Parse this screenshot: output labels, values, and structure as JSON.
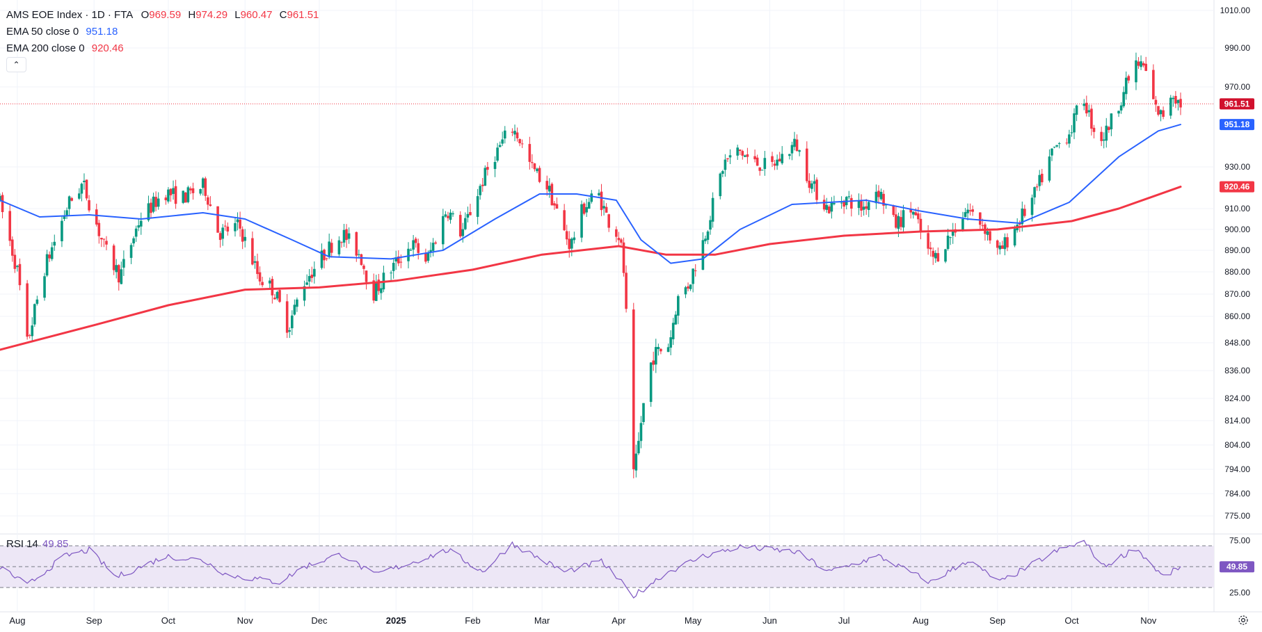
{
  "legend": {
    "title": "AMS EOE Index · 1D · FTA",
    "open_label": "O",
    "open": "969.59",
    "high_label": "H",
    "high": "974.29",
    "low_label": "L",
    "low": "960.47",
    "close_label": "C",
    "close": "961.51",
    "ema50_label": "EMA 50 close 0",
    "ema50_value": "951.18",
    "ema200_label": "EMA 200 close 0",
    "ema200_value": "920.46",
    "collapse_icon": "chevron-up-icon"
  },
  "rsi_legend": {
    "label": "RSI 14",
    "value": "49.85"
  },
  "colors": {
    "up": "#089981",
    "down": "#f23645",
    "ema50": "#2962ff",
    "ema200": "#f23645",
    "rsi": "#7e57c2",
    "rsi_band": "#ede7f6",
    "grid": "#f0f3fa",
    "text": "#131722"
  },
  "chart_data": [
    {
      "type": "candlestick",
      "title": "AMS EOE Index · 1D · FTA",
      "x_ticks": [
        "Aug",
        "Sep",
        "Oct",
        "Nov",
        "Dec",
        "2025",
        "Feb",
        "Mar",
        "Apr",
        "May",
        "Jun",
        "Jul",
        "Aug",
        "Sep",
        "Oct",
        "Nov"
      ],
      "y_ticks": [
        1010,
        990,
        970,
        930,
        910,
        900,
        890,
        880,
        870,
        860,
        848,
        836,
        824,
        814,
        804,
        794,
        784,
        775
      ],
      "ylim": [
        775,
        1010
      ],
      "last_price": 961.51,
      "ema50_last": 951.18,
      "ema200_last": 920.46,
      "price_path": [
        [
          "2024-07-25",
          915
        ],
        [
          "2024-08-02",
          878
        ],
        [
          "2024-08-05",
          845
        ],
        [
          "2024-08-12",
          880
        ],
        [
          "2024-08-22",
          912
        ],
        [
          "2024-08-28",
          922
        ],
        [
          "2024-09-06",
          890
        ],
        [
          "2024-09-12",
          878
        ],
        [
          "2024-09-20",
          905
        ],
        [
          "2024-09-30",
          918
        ],
        [
          "2024-10-07",
          915
        ],
        [
          "2024-10-16",
          921
        ],
        [
          "2024-10-22",
          898
        ],
        [
          "2024-10-30",
          902
        ],
        [
          "2024-11-07",
          878
        ],
        [
          "2024-11-13",
          872
        ],
        [
          "2024-11-19",
          855
        ],
        [
          "2024-11-25",
          875
        ],
        [
          "2024-12-06",
          892
        ],
        [
          "2024-12-11",
          898
        ],
        [
          "2024-12-18",
          888
        ],
        [
          "2024-12-23",
          870
        ],
        [
          "2025-01-02",
          885
        ],
        [
          "2025-01-08",
          893
        ],
        [
          "2025-01-14",
          885
        ],
        [
          "2025-01-22",
          910
        ],
        [
          "2025-01-28",
          898
        ],
        [
          "2025-02-05",
          922
        ],
        [
          "2025-02-10",
          935
        ],
        [
          "2025-02-17",
          950
        ],
        [
          "2025-02-20",
          945
        ],
        [
          "2025-02-25",
          930
        ],
        [
          "2025-03-04",
          920
        ],
        [
          "2025-03-10",
          900
        ],
        [
          "2025-03-13",
          892
        ],
        [
          "2025-03-18",
          910
        ],
        [
          "2025-03-24",
          918
        ],
        [
          "2025-03-28",
          905
        ],
        [
          "2025-04-02",
          896
        ],
        [
          "2025-04-04",
          875
        ],
        [
          "2025-04-07",
          787
        ],
        [
          "2025-04-09",
          800
        ],
        [
          "2025-04-11",
          818
        ],
        [
          "2025-04-15",
          842
        ],
        [
          "2025-04-22",
          848
        ],
        [
          "2025-04-25",
          867
        ],
        [
          "2025-04-30",
          875
        ],
        [
          "2025-05-06",
          896
        ],
        [
          "2025-05-14",
          932
        ],
        [
          "2025-05-20",
          938
        ],
        [
          "2025-05-26",
          932
        ],
        [
          "2025-06-02",
          930
        ],
        [
          "2025-06-09",
          938
        ],
        [
          "2025-06-12",
          942
        ],
        [
          "2025-06-18",
          922
        ],
        [
          "2025-06-25",
          910
        ],
        [
          "2025-07-02",
          915
        ],
        [
          "2025-07-09",
          910
        ],
        [
          "2025-07-15",
          920
        ],
        [
          "2025-07-22",
          902
        ],
        [
          "2025-07-29",
          910
        ],
        [
          "2025-08-04",
          890
        ],
        [
          "2025-08-07",
          886
        ],
        [
          "2025-08-14",
          898
        ],
        [
          "2025-08-20",
          910
        ],
        [
          "2025-08-27",
          902
        ],
        [
          "2025-09-02",
          888
        ],
        [
          "2025-09-08",
          900
        ],
        [
          "2025-09-16",
          915
        ],
        [
          "2025-09-24",
          938
        ],
        [
          "2025-10-01",
          948
        ],
        [
          "2025-10-06",
          966
        ],
        [
          "2025-10-10",
          950
        ],
        [
          "2025-10-14",
          944
        ],
        [
          "2025-10-20",
          960
        ],
        [
          "2025-10-27",
          982
        ],
        [
          "2025-10-31",
          980
        ],
        [
          "2025-11-04",
          960
        ],
        [
          "2025-11-07",
          955
        ],
        [
          "2025-11-11",
          968
        ],
        [
          "2025-11-14",
          961.51
        ]
      ],
      "ema50_path": [
        [
          "2024-07-25",
          914
        ],
        [
          "2024-08-10",
          906
        ],
        [
          "2024-08-30",
          907
        ],
        [
          "2024-09-20",
          905
        ],
        [
          "2024-10-15",
          908
        ],
        [
          "2024-11-01",
          905
        ],
        [
          "2024-11-20",
          895
        ],
        [
          "2024-12-05",
          887
        ],
        [
          "2024-12-30",
          886
        ],
        [
          "2025-01-20",
          890
        ],
        [
          "2025-02-10",
          905
        ],
        [
          "2025-02-28",
          917
        ],
        [
          "2025-03-15",
          917
        ],
        [
          "2025-03-31",
          914
        ],
        [
          "2025-04-10",
          895
        ],
        [
          "2025-04-22",
          884
        ],
        [
          "2025-05-05",
          886
        ],
        [
          "2025-05-20",
          900
        ],
        [
          "2025-06-10",
          912
        ],
        [
          "2025-07-10",
          914
        ],
        [
          "2025-07-31",
          909
        ],
        [
          "2025-08-20",
          905
        ],
        [
          "2025-09-10",
          903
        ],
        [
          "2025-09-30",
          913
        ],
        [
          "2025-10-20",
          935
        ],
        [
          "2025-11-05",
          948
        ],
        [
          "2025-11-14",
          951.18
        ]
      ],
      "ema200_path": [
        [
          "2024-07-25",
          845
        ],
        [
          "2024-09-01",
          856
        ],
        [
          "2024-10-01",
          865
        ],
        [
          "2024-11-01",
          872
        ],
        [
          "2024-12-01",
          873
        ],
        [
          "2025-01-01",
          876
        ],
        [
          "2025-02-01",
          881
        ],
        [
          "2025-03-01",
          888
        ],
        [
          "2025-04-01",
          892
        ],
        [
          "2025-04-20",
          888
        ],
        [
          "2025-05-10",
          888
        ],
        [
          "2025-06-01",
          893
        ],
        [
          "2025-07-01",
          897
        ],
        [
          "2025-08-01",
          899
        ],
        [
          "2025-09-01",
          900
        ],
        [
          "2025-10-01",
          904
        ],
        [
          "2025-10-20",
          910
        ],
        [
          "2025-11-14",
          920.46
        ]
      ]
    },
    {
      "type": "line",
      "title": "RSI 14",
      "y_ticks": [
        75.0,
        25.0
      ],
      "bands": [
        70,
        50,
        30
      ],
      "ylim": [
        20,
        80
      ],
      "last_value": 49.85,
      "path": [
        [
          "2024-07-25",
          50
        ],
        [
          "2024-08-05",
          32
        ],
        [
          "2024-08-20",
          60
        ],
        [
          "2024-08-30",
          66
        ],
        [
          "2024-09-10",
          40
        ],
        [
          "2024-09-30",
          60
        ],
        [
          "2024-10-15",
          56
        ],
        [
          "2024-10-25",
          42
        ],
        [
          "2024-11-15",
          35
        ],
        [
          "2024-11-25",
          50
        ],
        [
          "2024-12-10",
          62
        ],
        [
          "2024-12-23",
          42
        ],
        [
          "2025-01-10",
          56
        ],
        [
          "2025-01-22",
          66
        ],
        [
          "2025-02-05",
          45
        ],
        [
          "2025-02-17",
          72
        ],
        [
          "2025-03-10",
          45
        ],
        [
          "2025-03-25",
          55
        ],
        [
          "2025-04-07",
          22
        ],
        [
          "2025-04-20",
          44
        ],
        [
          "2025-05-05",
          60
        ],
        [
          "2025-05-20",
          69
        ],
        [
          "2025-06-12",
          64
        ],
        [
          "2025-06-25",
          45
        ],
        [
          "2025-07-15",
          60
        ],
        [
          "2025-08-05",
          35
        ],
        [
          "2025-08-20",
          56
        ],
        [
          "2025-09-02",
          35
        ],
        [
          "2025-09-24",
          64
        ],
        [
          "2025-10-06",
          74
        ],
        [
          "2025-10-14",
          50
        ],
        [
          "2025-10-27",
          68
        ],
        [
          "2025-11-07",
          40
        ],
        [
          "2025-11-14",
          49.85
        ]
      ]
    }
  ]
}
